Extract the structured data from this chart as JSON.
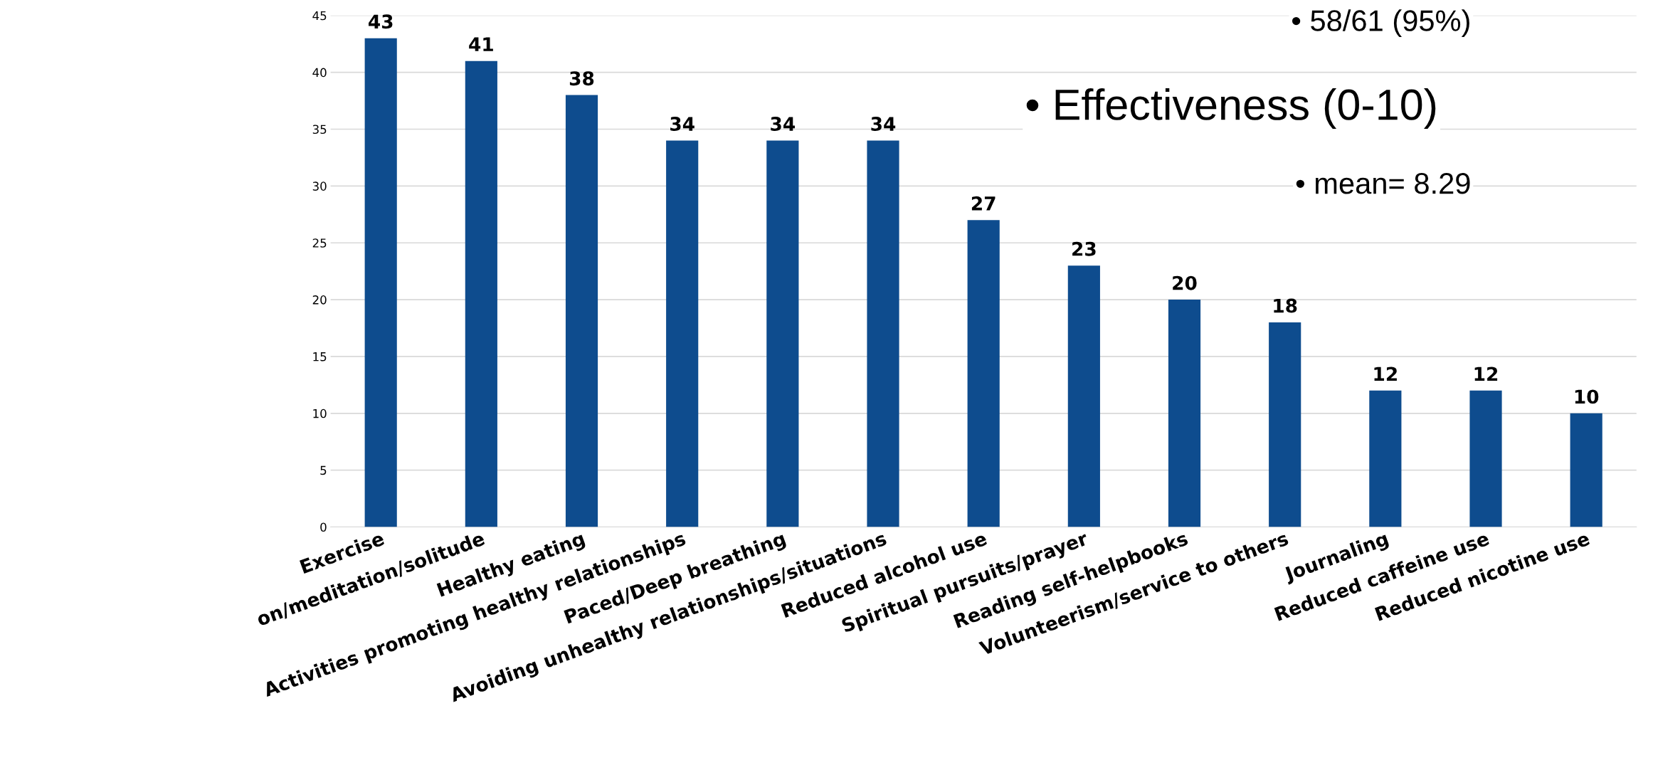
{
  "chart_data": {
    "type": "bar",
    "categories": [
      "Exercise",
      "on/meditation/solitude",
      "Healthy eating",
      "Activities promoting healthy relationships",
      "Paced/Deep breathing",
      "Avoiding unhealthy relationships/situations",
      "Reduced alcohol use",
      "Spiritual pursuits/prayer",
      "Reading self-helpbooks",
      "Volunteerism/service to others",
      "Journaling",
      "Reduced caffeine use",
      "Reduced nicotine use"
    ],
    "values": [
      43,
      41,
      38,
      34,
      34,
      34,
      27,
      23,
      20,
      18,
      12,
      12,
      10
    ],
    "color": "#0e4c8e",
    "data_labels": true,
    "grid": "y",
    "ylim": [
      0,
      45
    ],
    "yticks": [
      0,
      5,
      10,
      15,
      20,
      25,
      30,
      35,
      40,
      45
    ],
    "annotations": [
      "• 58/61 (95%)",
      "• Effectiveness (0-10)",
      "• mean= 8.29"
    ]
  }
}
